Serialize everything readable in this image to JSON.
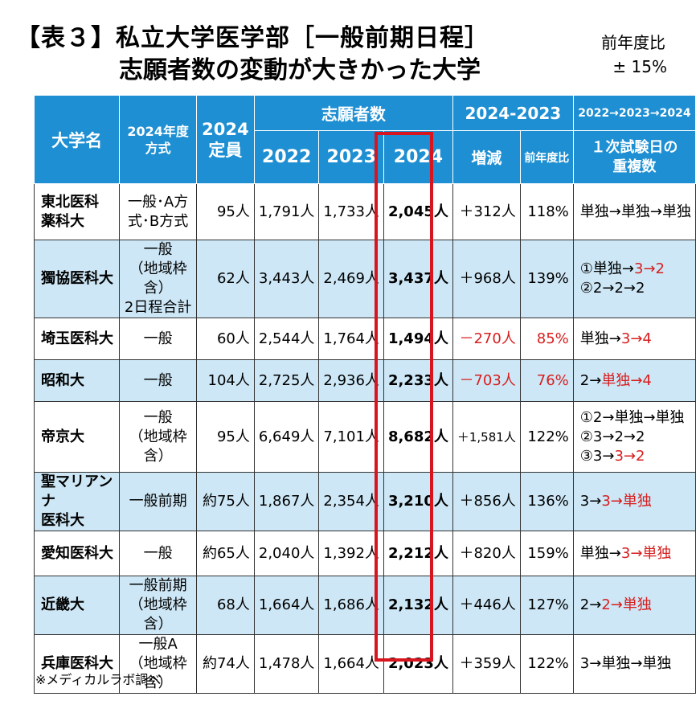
{
  "title": {
    "line1": "【表３】私立大学医学部［一般前期日程］",
    "line2": "志願者数の変動が大きかった大学"
  },
  "note": {
    "line1": "前年度比",
    "line2": "± 15%"
  },
  "headers": {
    "name": "大学名",
    "method": "2024年度\n方式",
    "capacity": "2024\n定員",
    "applicants": "志願者数",
    "y2022": "2022",
    "y2023": "2023",
    "y2024": "2024",
    "diff_group": "2024-2023",
    "diff": "増減",
    "ratio": "前年度比",
    "trend_group": "2022→2023→2024",
    "overlap": "１次試験日の\n重複数"
  },
  "rows": [
    {
      "name": "東北医科\n薬科大",
      "method": "一般･A方\n式･B方式",
      "capacity": "95人",
      "y2022": "1,791人",
      "y2023": "1,733人",
      "y2024": "2,045人",
      "diff": "＋312人",
      "ratio": "118%",
      "overlap": [
        [
          "単独→単独→単独",
          ""
        ]
      ],
      "neg": false
    },
    {
      "name": "獨協医科大",
      "method": "一般\n（地域枠含）\n2日程合計",
      "capacity": "62人",
      "y2022": "3,443人",
      "y2023": "2,469人",
      "y2024": "3,437人",
      "diff": "＋968人",
      "ratio": "139%",
      "overlap": [
        [
          "①単独→",
          "3→2"
        ],
        [
          "②2→2→2",
          ""
        ]
      ],
      "neg": false
    },
    {
      "name": "埼玉医科大",
      "method": "一般",
      "capacity": "60人",
      "y2022": "2,544人",
      "y2023": "1,764人",
      "y2024": "1,494人",
      "diff": "－270人",
      "ratio": "85%",
      "overlap": [
        [
          "単独→",
          "3→4"
        ]
      ],
      "neg": true
    },
    {
      "name": "昭和大",
      "method": "一般",
      "capacity": "104人",
      "y2022": "2,725人",
      "y2023": "2,936人",
      "y2024": "2,233人",
      "diff": "－703人",
      "ratio": "76%",
      "overlap": [
        [
          "2→",
          "単独→4"
        ]
      ],
      "neg": true
    },
    {
      "name": "帝京大",
      "method": "一般\n（地域枠含）",
      "capacity": "95人",
      "y2022": "6,649人",
      "y2023": "7,101人",
      "y2024": "8,682人",
      "diff": "＋1,581人",
      "ratio": "122%",
      "overlap": [
        [
          "①2→単独→単独",
          ""
        ],
        [
          "②3→2→2",
          ""
        ],
        [
          "③3→",
          "3→2"
        ]
      ],
      "neg": false
    },
    {
      "name": "聖マリアンナ\n医科大",
      "method": "一般前期",
      "capacity": "約75人",
      "y2022": "1,867人",
      "y2023": "2,354人",
      "y2024": "3,210人",
      "diff": "＋856人",
      "ratio": "136%",
      "overlap": [
        [
          "3→",
          "3→単独"
        ]
      ],
      "neg": false
    },
    {
      "name": "愛知医科大",
      "method": "一般",
      "capacity": "約65人",
      "y2022": "2,040人",
      "y2023": "1,392人",
      "y2024": "2,212人",
      "diff": "＋820人",
      "ratio": "159%",
      "overlap": [
        [
          "単独→",
          "3→単独"
        ]
      ],
      "neg": false
    },
    {
      "name": "近畿大",
      "method": "一般前期\n（地域枠含）",
      "capacity": "68人",
      "y2022": "1,664人",
      "y2023": "1,686人",
      "y2024": "2,132人",
      "diff": "＋446人",
      "ratio": "127%",
      "overlap": [
        [
          "2→",
          "2→単独"
        ]
      ],
      "neg": false
    },
    {
      "name": "兵庫医科大",
      "method": "一般A\n（地域枠含）",
      "capacity": "約74人",
      "y2022": "1,478人",
      "y2023": "1,664人",
      "y2024": "2,023人",
      "diff": "＋359人",
      "ratio": "122%",
      "overlap": [
        [
          "3→単独→単独",
          ""
        ]
      ],
      "neg": false
    }
  ],
  "source": "※メディカルラボ調べ",
  "colors": {
    "header_bg": "#1E8FD2",
    "alt_row_bg": "#CDE7F6",
    "highlight": "#D8141E",
    "negative": "#D81E1E"
  }
}
